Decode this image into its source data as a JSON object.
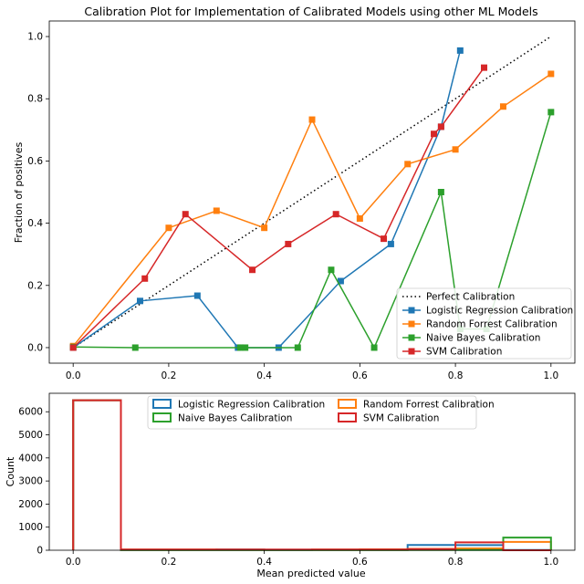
{
  "chart_data": [
    {
      "type": "line",
      "title": "Calibration Plot for Implementation of Calibrated Models using other ML Models",
      "xlabel": "",
      "ylabel": "Fraction of positives",
      "xlim": [
        -0.05,
        1.05
      ],
      "ylim": [
        -0.05,
        1.05
      ],
      "xticks": [
        0.0,
        0.2,
        0.4,
        0.6,
        0.8,
        1.0
      ],
      "xtick_labels": [
        "0.0",
        "0.2",
        "0.4",
        "0.6",
        "0.8",
        "1.0"
      ],
      "yticks": [
        0.0,
        0.2,
        0.4,
        0.6,
        0.8,
        1.0
      ],
      "ytick_labels": [
        "0.0",
        "0.2",
        "0.4",
        "0.6",
        "0.8",
        "1.0"
      ],
      "grid": false,
      "legend": "bottom-right",
      "series": [
        {
          "name": "Perfect Calibration",
          "color": "#000000",
          "style": "dotted",
          "marker": "none",
          "x": [
            0,
            1
          ],
          "y": [
            0,
            1
          ]
        },
        {
          "name": "Logistic Regression Calibration",
          "color": "#1f77b4",
          "style": "solid",
          "marker": "square",
          "x": [
            0.0,
            0.14,
            0.26,
            0.345,
            0.43,
            0.56,
            0.665,
            0.77,
            0.81
          ],
          "y": [
            0.0,
            0.15,
            0.167,
            0.0,
            0.0,
            0.214,
            0.333,
            0.71,
            0.955
          ]
        },
        {
          "name": "Random Forrest Calibration",
          "color": "#ff7f0e",
          "style": "solid",
          "marker": "square",
          "x": [
            0.0,
            0.2,
            0.3,
            0.4,
            0.5,
            0.6,
            0.7,
            0.8,
            0.9,
            1.0
          ],
          "y": [
            0.005,
            0.385,
            0.44,
            0.385,
            0.733,
            0.415,
            0.59,
            0.637,
            0.775,
            0.88
          ]
        },
        {
          "name": "Naive Bayes Calibration",
          "color": "#2ca02c",
          "style": "solid",
          "marker": "square",
          "x": [
            0.0,
            0.13,
            0.35,
            0.36,
            0.47,
            0.54,
            0.63,
            0.77,
            0.81,
            0.865,
            1.0
          ],
          "y": [
            0.002,
            0.0,
            0.0,
            0.0,
            0.0,
            0.25,
            0.0,
            0.5,
            0.06,
            0.06,
            0.757
          ]
        },
        {
          "name": "SVM Calibration",
          "color": "#d62728",
          "style": "solid",
          "marker": "square",
          "x": [
            0.0,
            0.15,
            0.235,
            0.375,
            0.45,
            0.55,
            0.65,
            0.755,
            0.77,
            0.86
          ],
          "y": [
            0.0,
            0.222,
            0.429,
            0.25,
            0.333,
            0.429,
            0.35,
            0.687,
            0.71,
            0.9
          ]
        }
      ]
    },
    {
      "type": "histogram",
      "title": "",
      "xlabel": "Mean predicted value",
      "ylabel": "Count",
      "xlim": [
        -0.05,
        1.05
      ],
      "ylim": [
        0,
        6800
      ],
      "xticks": [
        0.0,
        0.2,
        0.4,
        0.6,
        0.8,
        1.0
      ],
      "xtick_labels": [
        "0.0",
        "0.2",
        "0.4",
        "0.6",
        "0.8",
        "1.0"
      ],
      "yticks": [
        0,
        1000,
        2000,
        3000,
        4000,
        5000,
        6000
      ],
      "ytick_labels": [
        "0",
        "1000",
        "2000",
        "3000",
        "4000",
        "5000",
        "6000"
      ],
      "grid": false,
      "legend": "top-center",
      "bin_edges": [
        0.0,
        0.1,
        0.2,
        0.3,
        0.4,
        0.5,
        0.6,
        0.7,
        0.8,
        0.9,
        1.0
      ],
      "series": [
        {
          "name": "Logistic Regression Calibration",
          "color": "#1f77b4",
          "counts": [
            6500,
            20,
            20,
            30,
            15,
            20,
            30,
            230,
            220,
            10
          ]
        },
        {
          "name": "Random Forrest Calibration",
          "color": "#ff7f0e",
          "counts": [
            6500,
            30,
            30,
            25,
            20,
            30,
            40,
            60,
            80,
            360
          ]
        },
        {
          "name": "Naive Bayes Calibration",
          "color": "#2ca02c",
          "counts": [
            6500,
            5,
            5,
            5,
            5,
            5,
            5,
            10,
            10,
            550
          ]
        },
        {
          "name": "SVM Calibration",
          "color": "#d62728",
          "counts": [
            6500,
            30,
            30,
            30,
            30,
            30,
            30,
            50,
            340,
            0
          ]
        }
      ]
    }
  ]
}
